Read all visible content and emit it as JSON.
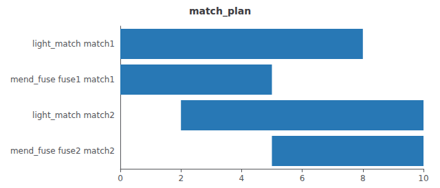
{
  "chart_data": {
    "type": "bar",
    "orientation": "horizontal",
    "title": "match_plan",
    "categories": [
      "light_match match1",
      "mend_fuse fuse1 match1",
      "light_match match2",
      "mend_fuse fuse2 match2"
    ],
    "values": [
      [
        0,
        8
      ],
      [
        0,
        5
      ],
      [
        2,
        10
      ],
      [
        5,
        10
      ]
    ],
    "color": "#2878b5",
    "xlim": [
      0,
      10
    ],
    "xticks": [
      0,
      2,
      4,
      6,
      8,
      10
    ],
    "grid": false
  }
}
